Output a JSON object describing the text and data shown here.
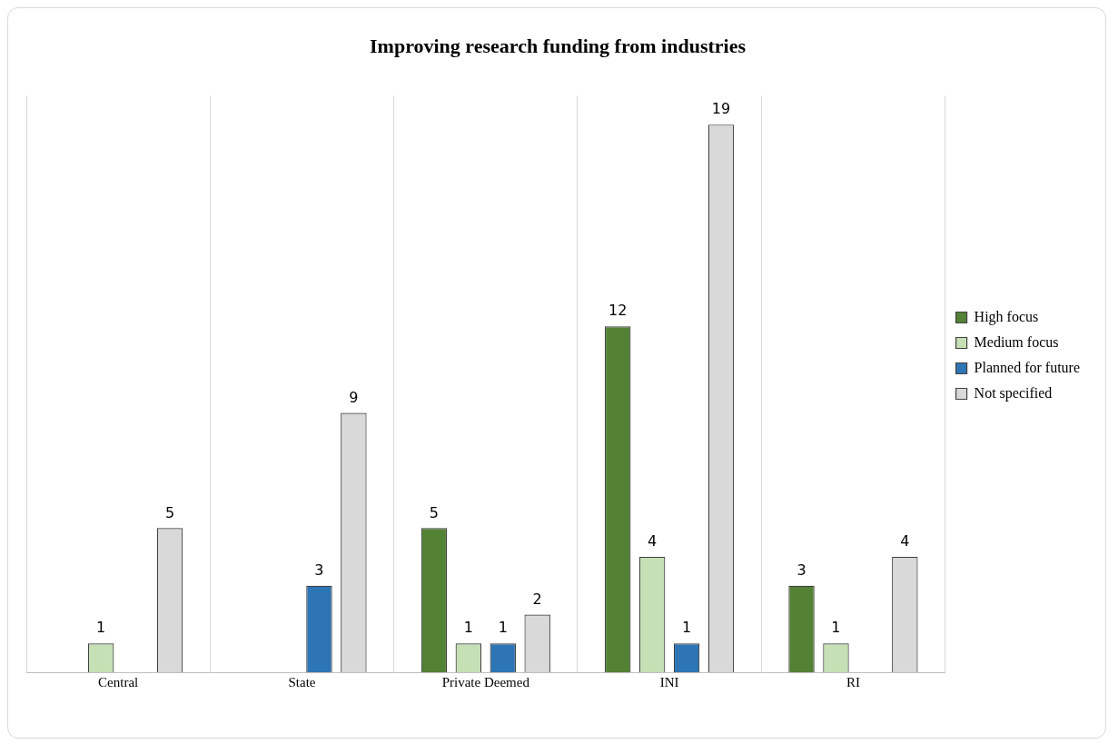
{
  "chart_data": {
    "type": "bar",
    "title": "Improving research funding from industries",
    "categories": [
      "Central",
      "State",
      "Private Deemed",
      "INI",
      "RI"
    ],
    "series": [
      {
        "name": "High focus",
        "color": "#548235",
        "values": [
          null,
          null,
          5,
          12,
          3
        ]
      },
      {
        "name": "Medium focus",
        "color": "#c5e0b4",
        "values": [
          1,
          null,
          1,
          4,
          1
        ]
      },
      {
        "name": "Planned for future",
        "color": "#2e75b6",
        "values": [
          null,
          3,
          1,
          1,
          null
        ]
      },
      {
        "name": "Not specified",
        "color": "#d9d9d9",
        "values": [
          5,
          9,
          2,
          19,
          4
        ]
      }
    ],
    "data_labels": true,
    "grid": "x",
    "legend": "right"
  }
}
